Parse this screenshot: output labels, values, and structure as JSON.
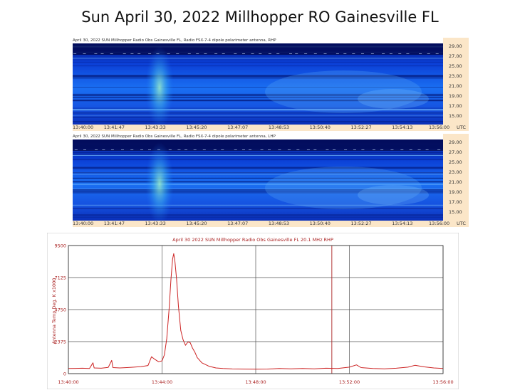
{
  "page": {
    "title": "Sun April 30, 2022 Millhopper RO Gainesville FL"
  },
  "spectrograms": [
    {
      "header": "April 30, 2022 SUN Millhopper Radio Obs Gainesville FL, Radio FSX-7-4 dipole polarimeter antenna, RHP",
      "freq_ticks": [
        "29.00",
        "27.00",
        "25.00",
        "23.00",
        "21.00",
        "19.00",
        "17.00",
        "15.00"
      ],
      "time_ticks": [
        "13:40:00",
        "13:41:47",
        "13:43:33",
        "13:45:20",
        "13:47:07",
        "13:48:53",
        "13:50:40",
        "13:52:27",
        "13:54:13",
        "13:56:00"
      ],
      "time_unit": "UTC"
    },
    {
      "header": "April 30, 2022 SUN Millhopper Radio Obs Gainesville FL, Radio FSX-7-4 dipole polarimeter antenna, LHP",
      "freq_ticks": [
        "29.00",
        "27.00",
        "25.00",
        "23.00",
        "21.00",
        "19.00",
        "17.00",
        "15.00"
      ],
      "time_ticks": [
        "13:40:00",
        "13:41:47",
        "13:43:33",
        "13:45:20",
        "13:47:07",
        "13:48:53",
        "13:50:40",
        "13:52:27",
        "13:54:13",
        "13:56:00"
      ],
      "time_unit": "UTC"
    }
  ],
  "chart_data": {
    "type": "line",
    "title": "April 30 2022 SUN Millhopper Radio Obs Gainesville FL 20.1 MHz RHP",
    "xlabel": "",
    "ylabel": "Antenna Temp Deg. K x1000",
    "x_tick_labels": [
      "13:40:00",
      "13:44:00",
      "13:48:00",
      "13:52:00",
      "13:56:00"
    ],
    "y_ticks": [
      0,
      2375,
      4750,
      7125,
      9500
    ],
    "ylim": [
      0,
      9500
    ],
    "xlim_minutes": [
      0,
      16
    ],
    "grid": true,
    "series": [
      {
        "color": "#cc2222",
        "points": [
          [
            0.0,
            380
          ],
          [
            0.3,
            390
          ],
          [
            0.6,
            400
          ],
          [
            0.9,
            380
          ],
          [
            1.05,
            800
          ],
          [
            1.1,
            420
          ],
          [
            1.4,
            400
          ],
          [
            1.7,
            460
          ],
          [
            1.85,
            980
          ],
          [
            1.9,
            450
          ],
          [
            2.2,
            420
          ],
          [
            2.5,
            450
          ],
          [
            2.8,
            480
          ],
          [
            3.1,
            520
          ],
          [
            3.4,
            600
          ],
          [
            3.55,
            1250
          ],
          [
            3.7,
            1050
          ],
          [
            3.85,
            880
          ],
          [
            4.0,
            950
          ],
          [
            4.1,
            1400
          ],
          [
            4.2,
            2600
          ],
          [
            4.3,
            4800
          ],
          [
            4.38,
            7000
          ],
          [
            4.45,
            8500
          ],
          [
            4.5,
            8900
          ],
          [
            4.55,
            8300
          ],
          [
            4.62,
            7000
          ],
          [
            4.7,
            5000
          ],
          [
            4.8,
            3200
          ],
          [
            4.9,
            2500
          ],
          [
            5.0,
            2100
          ],
          [
            5.1,
            2350
          ],
          [
            5.2,
            2300
          ],
          [
            5.3,
            1900
          ],
          [
            5.4,
            1600
          ],
          [
            5.5,
            1200
          ],
          [
            5.7,
            800
          ],
          [
            6.0,
            550
          ],
          [
            6.3,
            420
          ],
          [
            6.6,
            380
          ],
          [
            7.0,
            350
          ],
          [
            7.5,
            340
          ],
          [
            8.0,
            330
          ],
          [
            8.5,
            340
          ],
          [
            9.0,
            380
          ],
          [
            9.5,
            360
          ],
          [
            10.0,
            380
          ],
          [
            10.5,
            360
          ],
          [
            11.0,
            400
          ],
          [
            11.5,
            380
          ],
          [
            12.0,
            480
          ],
          [
            12.3,
            650
          ],
          [
            12.5,
            450
          ],
          [
            13.0,
            380
          ],
          [
            13.5,
            360
          ],
          [
            14.0,
            400
          ],
          [
            14.5,
            480
          ],
          [
            14.8,
            620
          ],
          [
            15.2,
            500
          ],
          [
            15.6,
            420
          ],
          [
            16.0,
            380
          ]
        ]
      }
    ],
    "markers": [
      {
        "x": 11.25,
        "color": "#aa2222"
      }
    ]
  }
}
